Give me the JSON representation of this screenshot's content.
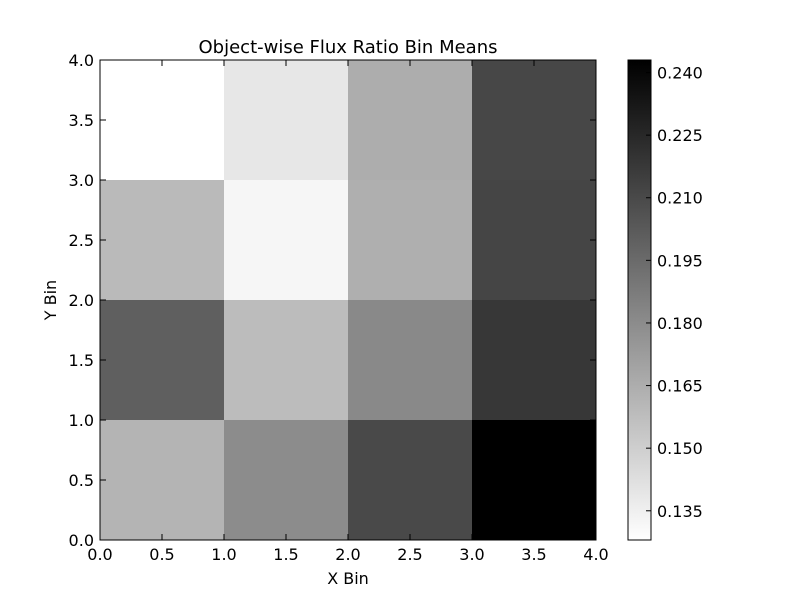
{
  "chart_data": {
    "type": "heatmap",
    "title": "Object-wise Flux Ratio Bin Means",
    "xlabel": "X Bin",
    "ylabel": "Y Bin",
    "xlim": [
      0.0,
      4.0
    ],
    "ylim": [
      0.0,
      4.0
    ],
    "x_ticks": [
      "0.0",
      "0.5",
      "1.0",
      "1.5",
      "2.0",
      "2.5",
      "3.0",
      "3.5",
      "4.0"
    ],
    "y_ticks": [
      "0.0",
      "0.5",
      "1.0",
      "1.5",
      "2.0",
      "2.5",
      "3.0",
      "3.5",
      "4.0"
    ],
    "x_bin_edges": [
      0,
      1,
      2,
      3,
      4
    ],
    "y_bin_edges": [
      0,
      1,
      2,
      3,
      4
    ],
    "values_by_row_bottom_to_top": [
      [
        0.162,
        0.18,
        0.21,
        0.243
      ],
      [
        0.2,
        0.158,
        0.181,
        0.218
      ],
      [
        0.159,
        0.132,
        0.164,
        0.212
      ],
      [
        0.128,
        0.139,
        0.165,
        0.211
      ]
    ],
    "colormap": "gray_r",
    "color_min": 0.128,
    "color_max": 0.243,
    "colorbar_ticks": [
      "0.135",
      "0.150",
      "0.165",
      "0.180",
      "0.195",
      "0.210",
      "0.225",
      "0.240"
    ],
    "grid": false
  }
}
